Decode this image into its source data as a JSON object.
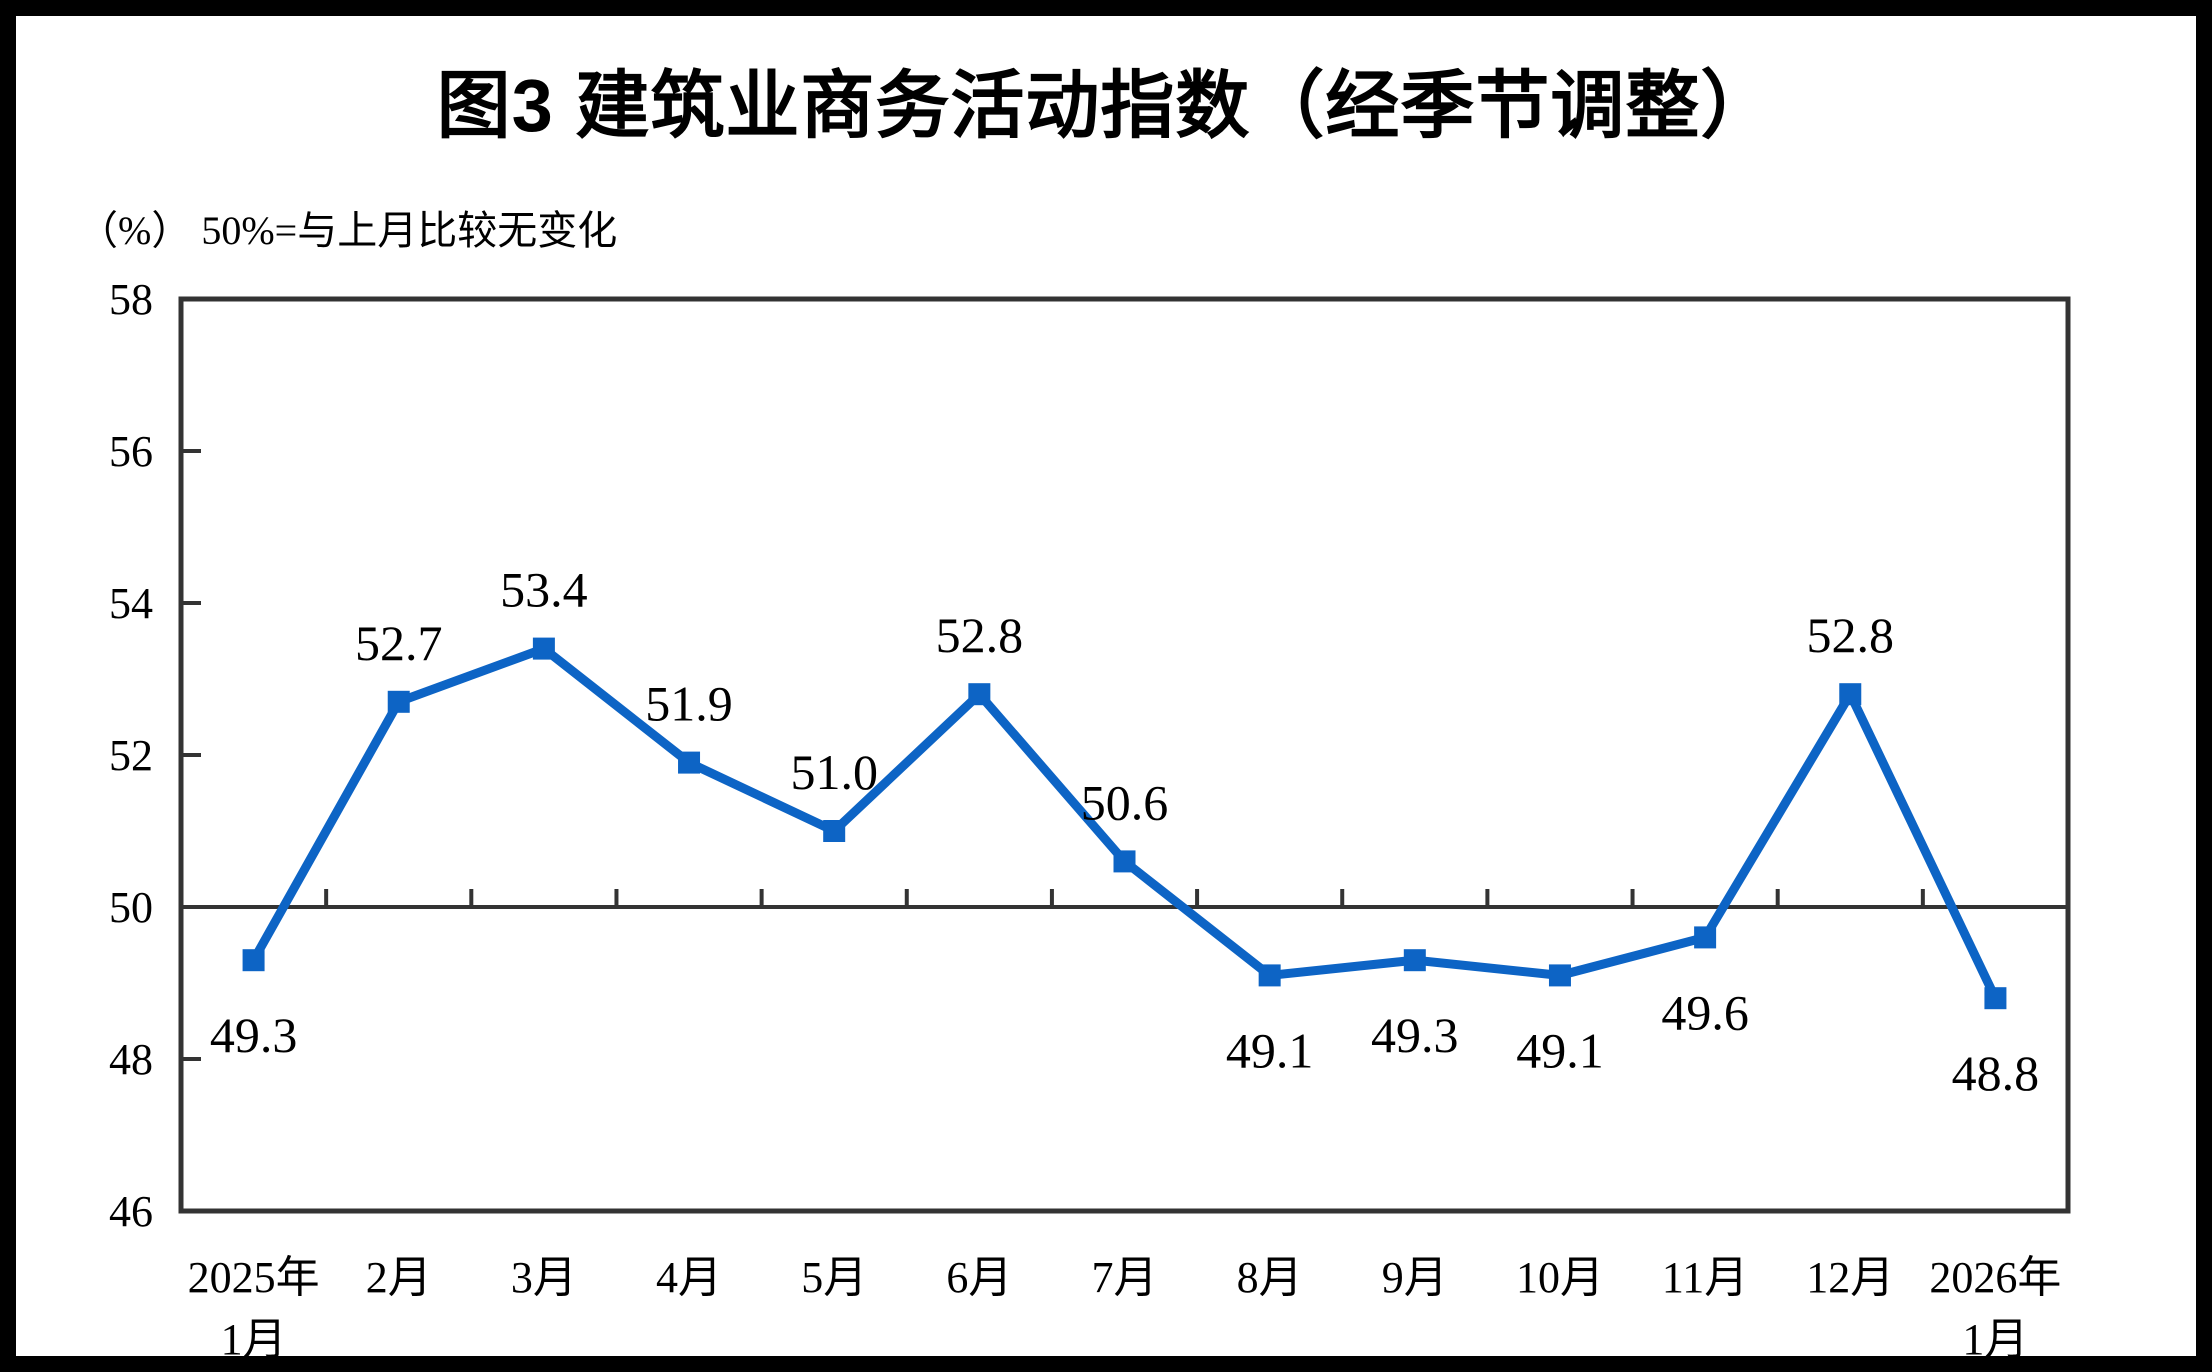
{
  "figure": {
    "title": "图3 建筑业商务活动指数（经季节调整）",
    "subtitle": "（%） 50%=与上月比较无变化"
  },
  "chart_data": {
    "type": "line",
    "title": "图3 建筑业商务活动指数（经季节调整）",
    "unit_note": "（%） 50%=与上月比较无变化",
    "categories": [
      [
        "2025年",
        "1月"
      ],
      [
        "2月"
      ],
      [
        "3月"
      ],
      [
        "4月"
      ],
      [
        "5月"
      ],
      [
        "6月"
      ],
      [
        "7月"
      ],
      [
        "8月"
      ],
      [
        "9月"
      ],
      [
        "10月"
      ],
      [
        "11月"
      ],
      [
        "12月"
      ],
      [
        "2026年",
        "1月"
      ]
    ],
    "series": [
      {
        "name": "建筑业商务活动指数（经季节调整）",
        "values": [
          49.3,
          52.7,
          53.4,
          51.9,
          51.0,
          52.8,
          50.6,
          49.1,
          49.3,
          49.1,
          49.6,
          52.8,
          48.8
        ]
      }
    ],
    "data_labels": [
      "49.3",
      "52.7",
      "53.4",
      "51.9",
      "51.0",
      "52.8",
      "50.6",
      "49.1",
      "49.3",
      "49.1",
      "49.6",
      "52.8",
      "48.8"
    ],
    "ylim": [
      46,
      58
    ],
    "yticks": [
      46,
      48,
      50,
      52,
      54,
      56,
      58
    ],
    "reference_line": 50,
    "grid": false,
    "legend_position": "none",
    "marker": "square",
    "line_color": "#0D64C5",
    "axis_color": "#333333",
    "label_color": "#000000"
  }
}
